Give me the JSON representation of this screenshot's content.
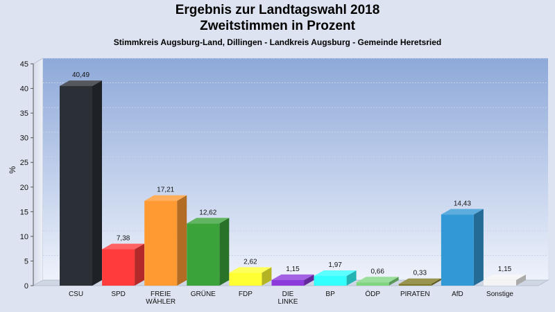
{
  "title": "Ergebnis zur Landtagswahl 2018",
  "subtitle": "Zweitstimmen in Prozent",
  "subsubtitle": "Stimmkreis Augsburg-Land, Dillingen - Landkreis Augsburg - Gemeinde Heretsried",
  "chart_data": {
    "type": "bar",
    "title": "Ergebnis zur Landtagswahl 2018",
    "ylabel": "%",
    "ylim": [
      0,
      45
    ],
    "yticks": [
      "0",
      "5",
      "10",
      "15",
      "20",
      "25",
      "30",
      "35",
      "40",
      "45"
    ],
    "grid": true,
    "categories": [
      "CSU",
      "SPD",
      "FREIE\nWÄHLER",
      "GRÜNE",
      "FDP",
      "DIE\nLINKE",
      "BP",
      "ÖDP",
      "PIRATEN",
      "AfD",
      "Sonstige"
    ],
    "values": [
      40.49,
      7.38,
      17.21,
      12.62,
      2.62,
      1.15,
      1.97,
      0.66,
      0.33,
      14.43,
      1.15
    ],
    "labels": [
      "40,49",
      "7,38",
      "17,21",
      "12,62",
      "2,62",
      "1,15",
      "1,97",
      "0,66",
      "0,33",
      "14,43",
      "1,15"
    ],
    "colors": [
      "#2b2f36",
      "#ff3b3b",
      "#ff9a33",
      "#3aa33a",
      "#ffff33",
      "#8c3adc",
      "#33ffff",
      "#7fd67f",
      "#7f7a26",
      "#3399d6",
      "#f4f4f4"
    ]
  }
}
